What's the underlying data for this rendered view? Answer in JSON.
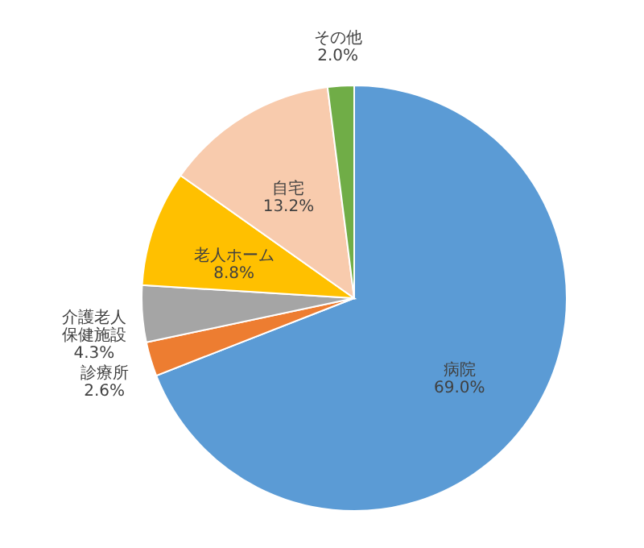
{
  "chart_data": {
    "type": "pie",
    "categories": [
      "病院",
      "診療所",
      "介護老人保健施設",
      "老人ホーム",
      "自宅",
      "その他"
    ],
    "values": [
      69.0,
      2.6,
      4.3,
      8.8,
      13.2,
      2.0
    ],
    "value_labels": [
      "69.0%",
      "2.6%",
      "4.3%",
      "8.8%",
      "13.2%",
      "2.0%"
    ],
    "colors": [
      "#5b9bd5",
      "#ed7d31",
      "#a5a5a5",
      "#ffc000",
      "#f8cbad",
      "#70ad47"
    ]
  }
}
